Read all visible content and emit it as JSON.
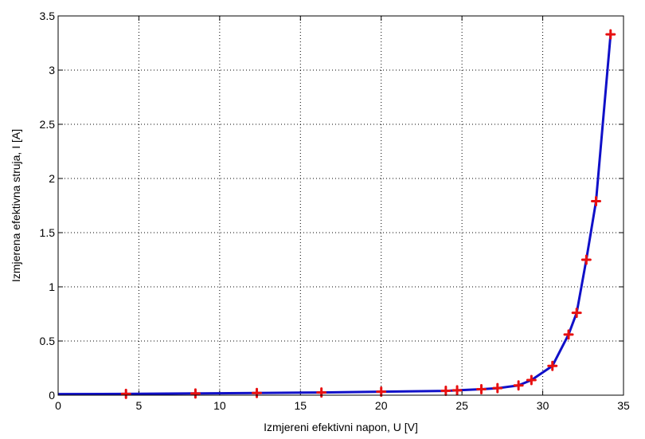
{
  "chart_data": {
    "type": "line",
    "xlabel": "Izmjereni efektivni napon, U [V]",
    "ylabel": "Izmjerena efektivna struja, I [A]",
    "xlim": [
      0,
      35
    ],
    "ylim": [
      0,
      3.5
    ],
    "xticks": [
      "0",
      "5",
      "10",
      "15",
      "20",
      "25",
      "30",
      "35"
    ],
    "yticks": [
      "0",
      "0.5",
      "1",
      "1.5",
      "2",
      "2.5",
      "3",
      "3.5"
    ],
    "grid": true,
    "legend": "none",
    "colors": {
      "line": "#1010c8",
      "marker": "#e81010"
    },
    "series": [
      {
        "x": [
          0,
          4.2,
          8.5,
          12.3,
          16.3,
          20.0,
          24.0,
          24.7,
          26.2,
          27.2,
          28.5,
          29.3,
          30.6,
          31.6,
          32.1,
          32.7,
          33.3,
          34.2
        ],
        "y": [
          0.01,
          0.012,
          0.016,
          0.02,
          0.025,
          0.032,
          0.04,
          0.045,
          0.055,
          0.065,
          0.09,
          0.14,
          0.27,
          0.56,
          0.76,
          1.25,
          1.79,
          3.33
        ],
        "markers": [
          false,
          true,
          true,
          true,
          true,
          true,
          true,
          true,
          true,
          true,
          true,
          true,
          true,
          true,
          true,
          true,
          true,
          true
        ]
      }
    ]
  }
}
